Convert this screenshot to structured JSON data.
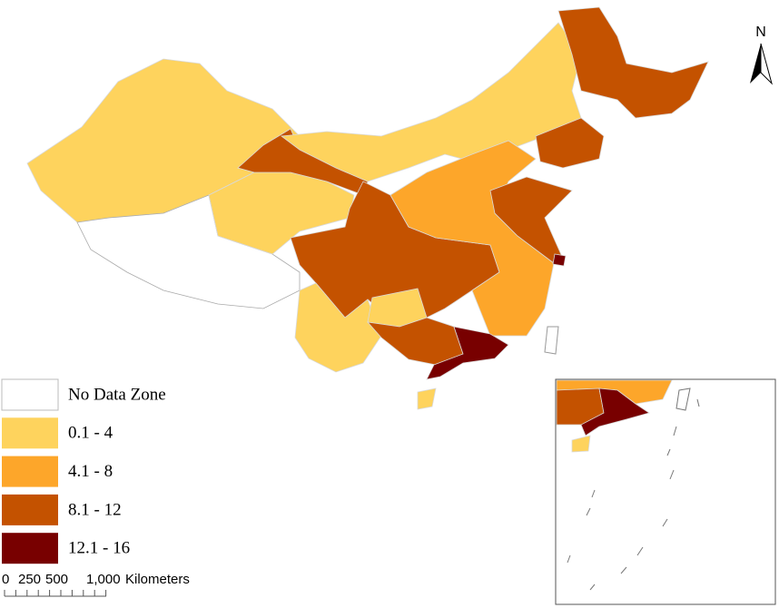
{
  "north_label": "N",
  "legend": {
    "items": [
      {
        "label": "No Data Zone",
        "color": "#ffffff"
      },
      {
        "label": "0.1 - 4",
        "color": "#fed35d"
      },
      {
        "label": "4.1 - 8",
        "color": "#fda62a"
      },
      {
        "label": "8.1 - 12",
        "color": "#c45200"
      },
      {
        "label": "12.1 - 16",
        "color": "#780000"
      }
    ]
  },
  "scale_bar": {
    "ticks": [
      "0",
      "250",
      "500",
      "1,000"
    ],
    "unit": "Kilometers"
  }
}
